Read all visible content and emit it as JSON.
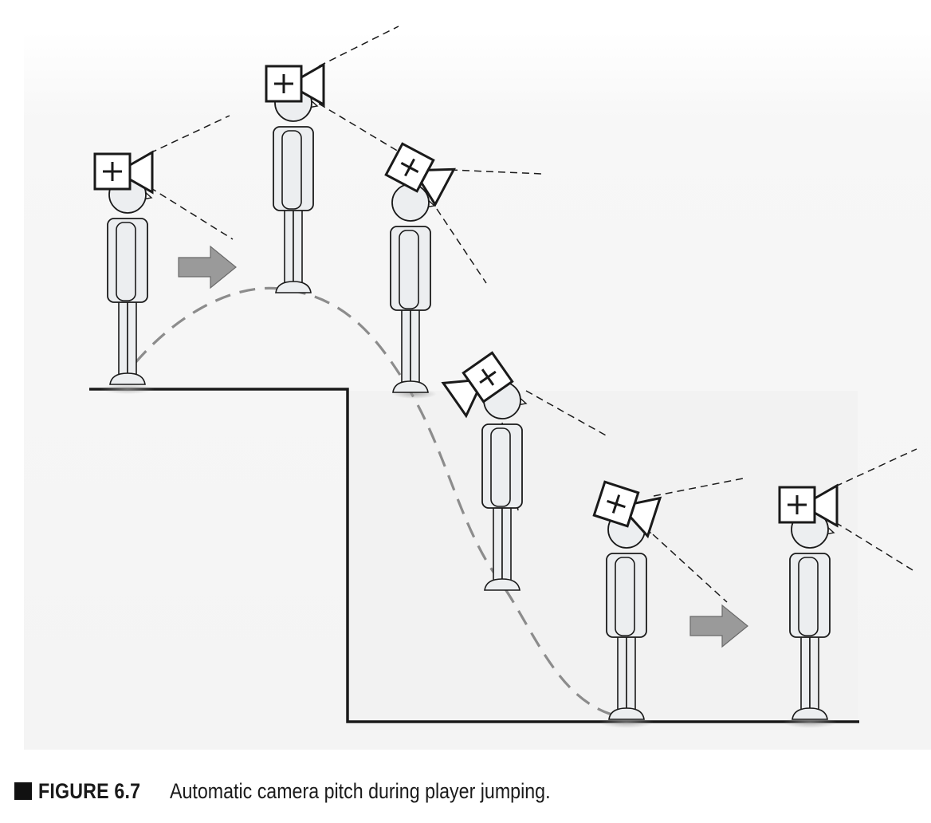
{
  "caption": {
    "label": "FIGURE 6.7",
    "text": "Automatic camera pitch during player jumping."
  },
  "colors": {
    "outline": "#1a1a1a",
    "figure_fill": "#eceef0",
    "trajectory": "#8c8c8c",
    "arrow_fill": "#9a9a9a",
    "background_panel": "#f7f7f7"
  },
  "diagram": {
    "player_poses": [
      "standing-on-ledge",
      "jump-apex",
      "descending",
      "falling",
      "landing",
      "standing-on-ground"
    ],
    "camera_count": 6,
    "motion_arrows": 2
  }
}
